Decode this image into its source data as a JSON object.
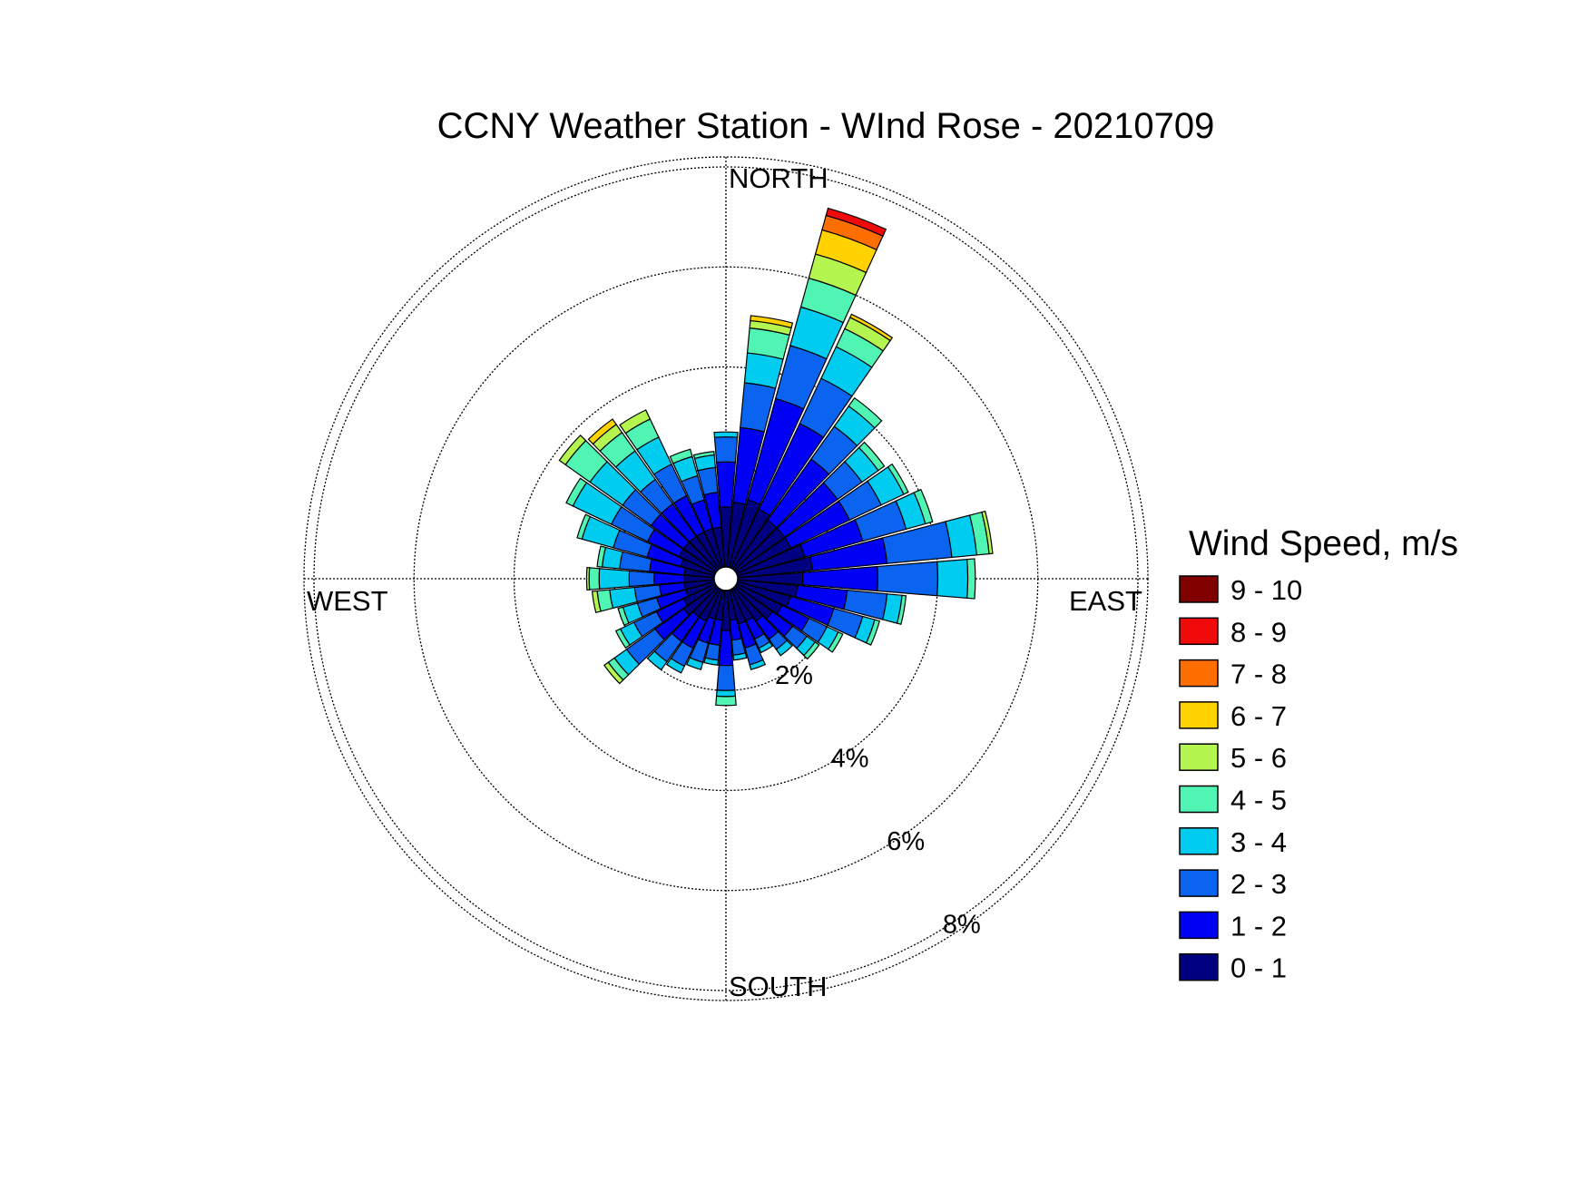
{
  "chart_data": {
    "type": "wind-rose",
    "title": "CCNY Weather Station - WInd Rose - 20210709",
    "directions": {
      "north": "NORTH",
      "east": "EAST",
      "south": "SOUTH",
      "west": "WEST"
    },
    "rings": [
      {
        "value": 2,
        "label": "2%"
      },
      {
        "value": 4,
        "label": "4%"
      },
      {
        "value": 6,
        "label": "6%"
      },
      {
        "value": 8,
        "label": "8%"
      }
    ],
    "rlim": [
      0,
      8.2
    ],
    "grid": true,
    "legend": {
      "title": "Wind Speed, m/s",
      "placement": "right",
      "bins": [
        {
          "label": "0 - 1",
          "color": "#000080"
        },
        {
          "label": "1 - 2",
          "color": "#0000f5"
        },
        {
          "label": "2 - 3",
          "color": "#0a64f0"
        },
        {
          "label": "3 - 4",
          "color": "#00ccf0"
        },
        {
          "label": "4 - 5",
          "color": "#50f5b4"
        },
        {
          "label": "5 - 6",
          "color": "#b4f550"
        },
        {
          "label": "6 - 7",
          "color": "#ffd200"
        },
        {
          "label": "7 - 8",
          "color": "#ff6e00"
        },
        {
          "label": "8 - 9",
          "color": "#f00a0a"
        },
        {
          "label": "9 - 10",
          "color": "#800000"
        }
      ]
    },
    "sector_width_deg": 10,
    "sectors": [
      {
        "dir": 0,
        "cum": [
          1.2,
          2.1,
          2.6,
          2.7
        ]
      },
      {
        "dir": 10,
        "cum": [
          1.3,
          2.8,
          3.7,
          4.3,
          4.8,
          4.95,
          5.05
        ]
      },
      {
        "dir": 20,
        "cum": [
          1.4,
          3.5,
          4.6,
          5.4,
          6.0,
          6.5,
          7.0,
          7.3,
          7.45
        ]
      },
      {
        "dir": 30,
        "cum": [
          1.3,
          3.2,
          4.2,
          4.9,
          5.3,
          5.55,
          5.62
        ]
      },
      {
        "dir": 40,
        "cum": [
          1.2,
          2.7,
          3.5,
          4.0,
          4.2
        ]
      },
      {
        "dir": 50,
        "cum": [
          1.2,
          2.5,
          3.1,
          3.5,
          3.65
        ]
      },
      {
        "dir": 60,
        "cum": [
          1.2,
          2.5,
          3.2,
          3.7,
          3.8
        ]
      },
      {
        "dir": 70,
        "cum": [
          1.4,
          2.6,
          3.5,
          3.9,
          4.05
        ]
      },
      {
        "dir": 80,
        "cum": [
          1.5,
          3.0,
          4.3,
          4.8,
          5.05,
          5.12
        ]
      },
      {
        "dir": 90,
        "cum": [
          1.3,
          2.8,
          4.0,
          4.6,
          4.75
        ]
      },
      {
        "dir": 100,
        "cum": [
          1.2,
          2.2,
          3.0,
          3.3,
          3.38
        ]
      },
      {
        "dir": 110,
        "cum": [
          1.1,
          2.0,
          2.6,
          2.85,
          2.95
        ]
      },
      {
        "dir": 120,
        "cum": [
          1.0,
          1.6,
          2.0,
          2.25,
          2.35
        ]
      },
      {
        "dir": 130,
        "cum": [
          0.9,
          1.4,
          1.75,
          1.95,
          2.05
        ]
      },
      {
        "dir": 140,
        "cum": [
          0.8,
          1.25,
          1.5,
          1.65
        ]
      },
      {
        "dir": 150,
        "cum": [
          0.7,
          1.1,
          1.3,
          1.4
        ]
      },
      {
        "dir": 160,
        "cum": [
          0.7,
          1.2,
          1.55,
          1.65
        ]
      },
      {
        "dir": 170,
        "cum": [
          0.6,
          1.0,
          1.3,
          1.4
        ]
      },
      {
        "dir": 180,
        "cum": [
          0.8,
          1.5,
          2.0,
          2.12,
          2.3
        ]
      },
      {
        "dir": 190,
        "cum": [
          0.6,
          1.1,
          1.4,
          1.5
        ]
      },
      {
        "dir": 200,
        "cum": [
          0.6,
          1.1,
          1.5,
          1.65
        ]
      },
      {
        "dir": 210,
        "cum": [
          0.7,
          1.3,
          1.7,
          1.85
        ]
      },
      {
        "dir": 220,
        "cum": [
          0.7,
          1.3,
          1.8,
          2.0
        ]
      },
      {
        "dir": 230,
        "cum": [
          0.8,
          1.5,
          2.2,
          2.5,
          2.65,
          2.75
        ]
      },
      {
        "dir": 240,
        "cum": [
          0.7,
          1.3,
          1.8,
          2.1,
          2.2
        ]
      },
      {
        "dir": 250,
        "cum": [
          0.6,
          1.2,
          1.6,
          1.9,
          2.0
        ]
      },
      {
        "dir": 260,
        "cum": [
          0.6,
          1.1,
          1.6,
          2.1,
          2.35,
          2.45
        ]
      },
      {
        "dir": 270,
        "cum": [
          0.6,
          1.2,
          1.7,
          2.3,
          2.5,
          2.55
        ]
      },
      {
        "dir": 280,
        "cum": [
          0.6,
          1.3,
          1.9,
          2.25,
          2.35
        ]
      },
      {
        "dir": 290,
        "cum": [
          0.7,
          1.4,
          2.1,
          2.75,
          2.85
        ]
      },
      {
        "dir": 300,
        "cum": [
          0.8,
          1.5,
          2.3,
          3.15,
          3.3
        ]
      },
      {
        "dir": 310,
        "cum": [
          0.8,
          1.6,
          2.3,
          3.1,
          3.7,
          3.85
        ]
      },
      {
        "dir": 320,
        "cum": [
          0.8,
          1.6,
          2.2,
          2.9,
          3.35,
          3.55,
          3.68
        ]
      },
      {
        "dir": 330,
        "cum": [
          0.8,
          1.6,
          2.3,
          2.9,
          3.3,
          3.5
        ]
      },
      {
        "dir": 340,
        "cum": [
          0.8,
          1.4,
          1.9,
          2.3,
          2.45
        ]
      },
      {
        "dir": 350,
        "cum": [
          0.8,
          1.5,
          2.0,
          2.25,
          2.32
        ]
      }
    ]
  }
}
